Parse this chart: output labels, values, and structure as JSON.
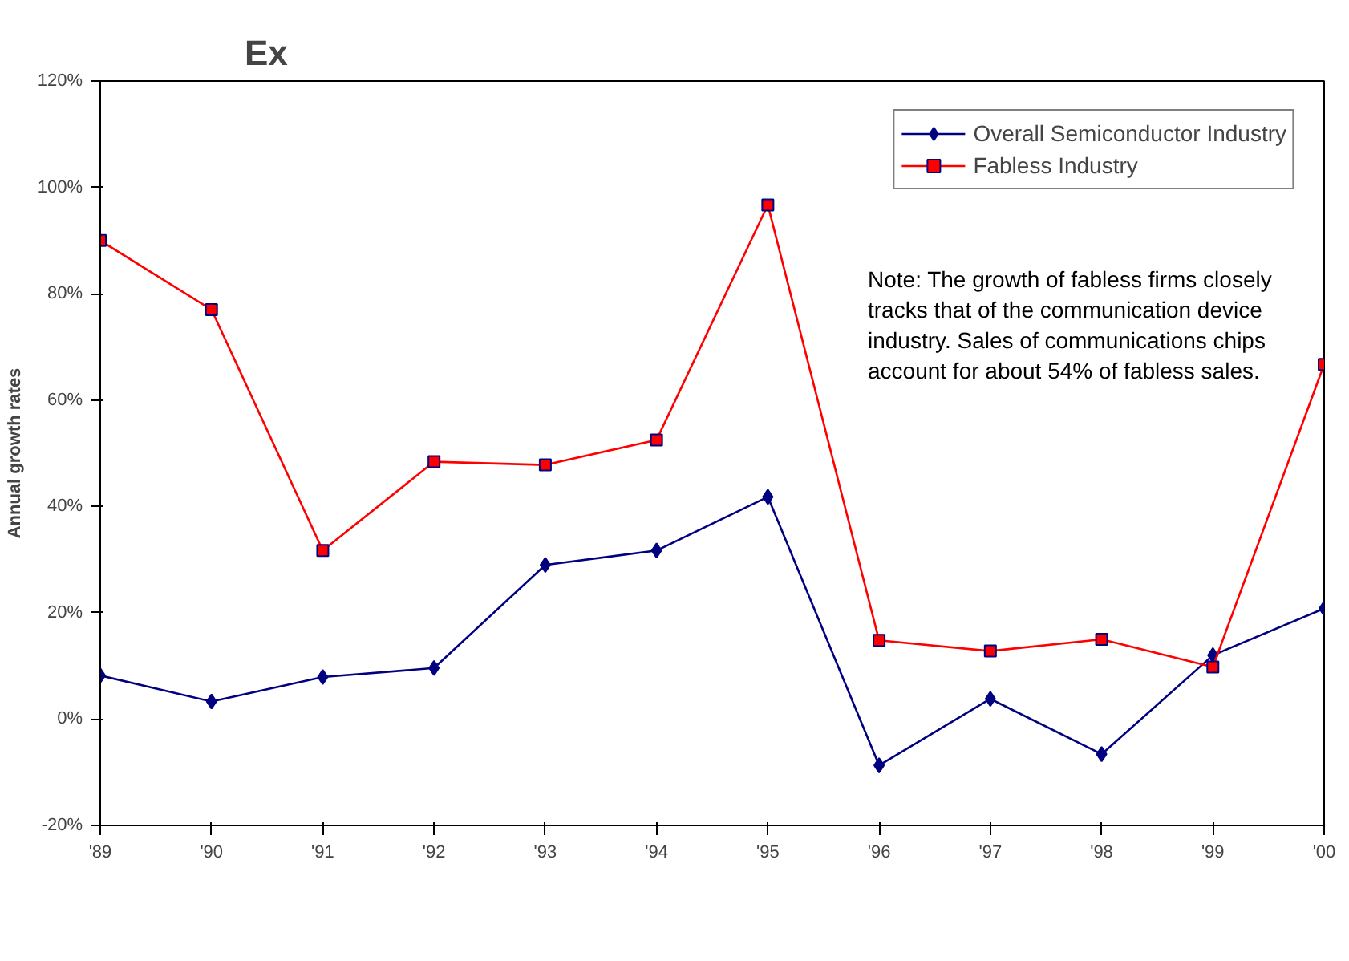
{
  "chart_data": {
    "type": "line",
    "title": "Ex",
    "ylabel": "Annual growth rates",
    "categories": [
      "'89",
      "'90",
      "'91",
      "'92",
      "'93",
      "'94",
      "'95",
      "'96",
      "'97",
      "'98",
      "'99",
      "'00"
    ],
    "series": [
      {
        "name": "Overall Semiconductor Industry",
        "color": "#000080",
        "marker": "diamond",
        "values": [
          8.2,
          3.3,
          7.9,
          9.6,
          29,
          31.7,
          41.8,
          -8.7,
          3.8,
          -6.6,
          12,
          20.8
        ]
      },
      {
        "name": "Fabless Industry",
        "color": "#ff0000",
        "marker": "square",
        "values": [
          90,
          77,
          31.7,
          48.4,
          47.8,
          52.5,
          96.7,
          14.8,
          12.8,
          15,
          9.8,
          66.7
        ]
      }
    ],
    "ylim": [
      -20,
      120
    ],
    "yticks": [
      {
        "value": -20,
        "label": "-20%"
      },
      {
        "value": 0,
        "label": "0%"
      },
      {
        "value": 20,
        "label": "20%"
      },
      {
        "value": 40,
        "label": "40%"
      },
      {
        "value": 60,
        "label": "60%"
      },
      {
        "value": 80,
        "label": "80%"
      },
      {
        "value": 100,
        "label": "100%"
      },
      {
        "value": 120,
        "label": "120%"
      }
    ],
    "grid": false,
    "legend": "top right",
    "line_style": "solid",
    "annotations": [
      "Note: The growth of fabless firms closely tracks that of the communication device industry. Sales of communications chips account for about 54% of fabless sales."
    ]
  }
}
